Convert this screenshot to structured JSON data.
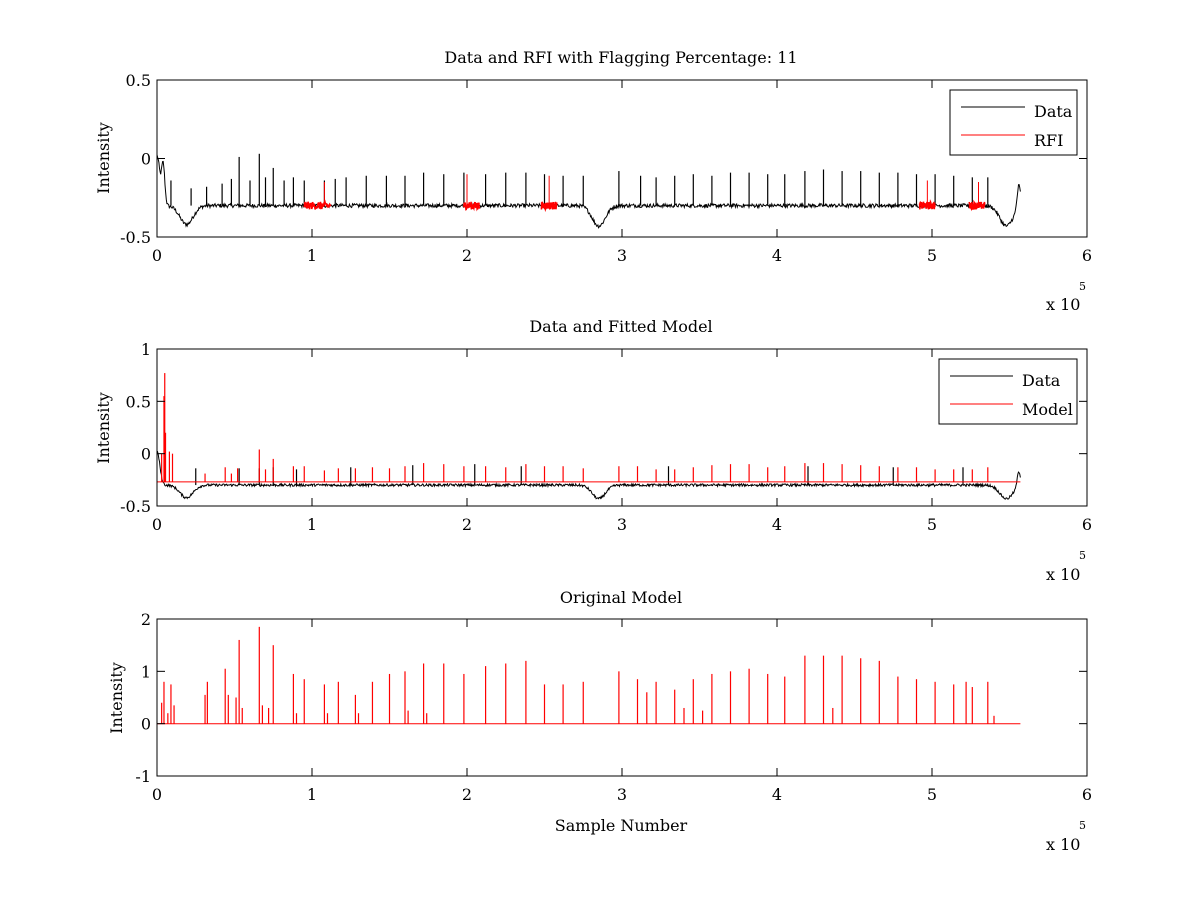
{
  "figure": {
    "background": "#ffffff",
    "colors": {
      "data": "#000000",
      "rfi": "#ff0000",
      "model": "#ff0000",
      "axes": "#000000"
    }
  },
  "chart_data": [
    {
      "type": "line",
      "title": "Data and RFI with Flagging Percentage: 11",
      "xlabel": "",
      "ylabel": "Intensity",
      "xlim": [
        0,
        600000
      ],
      "ylim": [
        -0.5,
        0.5
      ],
      "xticks": [
        0,
        1,
        2,
        3,
        4,
        5,
        6
      ],
      "yticks": [
        -0.5,
        0,
        0.5
      ],
      "ytick_labels": [
        "-0.5",
        "0",
        "0.5"
      ],
      "x_multiplier_label": "x 10",
      "x_multiplier_exponent": "5",
      "legend": {
        "position": "top-right",
        "entries": [
          "Data",
          "RFI"
        ]
      },
      "grid": false,
      "series": [
        {
          "name": "Data",
          "color": "#000000",
          "baseline": -0.3,
          "noise": 0.012,
          "x_range": [
            0,
            557000
          ],
          "features": [
            {
              "x": 0,
              "y": 0.02,
              "type": "start"
            },
            {
              "x": 4000,
              "y": -0.05,
              "type": "spike"
            },
            {
              "x": 19000,
              "y": -0.42,
              "type": "dip"
            },
            {
              "x": 285000,
              "y": -0.43,
              "type": "dip"
            },
            {
              "x": 548000,
              "y": -0.43,
              "type": "dip"
            },
            {
              "x": 556000,
              "y": -0.15,
              "type": "spike"
            }
          ],
          "spikes": [
            [
              9000,
              -0.14
            ],
            [
              22000,
              -0.19
            ],
            [
              32000,
              -0.18
            ],
            [
              42000,
              -0.16
            ],
            [
              48000,
              -0.13
            ],
            [
              53000,
              0.01
            ],
            [
              60000,
              -0.14
            ],
            [
              66000,
              0.03
            ],
            [
              70000,
              -0.12
            ],
            [
              75000,
              -0.06
            ],
            [
              82000,
              -0.14
            ],
            [
              88000,
              -0.12
            ],
            [
              95000,
              -0.14
            ],
            [
              108000,
              -0.14
            ],
            [
              115000,
              -0.13
            ],
            [
              122000,
              -0.12
            ],
            [
              135000,
              -0.11
            ],
            [
              148000,
              -0.11
            ],
            [
              160000,
              -0.11
            ],
            [
              172000,
              -0.09
            ],
            [
              185000,
              -0.1
            ],
            [
              198000,
              -0.09
            ],
            [
              212000,
              -0.1
            ],
            [
              225000,
              -0.09
            ],
            [
              238000,
              -0.09
            ],
            [
              250000,
              -0.1
            ],
            [
              262000,
              -0.11
            ],
            [
              275000,
              -0.11
            ],
            [
              298000,
              -0.08
            ],
            [
              312000,
              -0.11
            ],
            [
              322000,
              -0.12
            ],
            [
              334000,
              -0.11
            ],
            [
              346000,
              -0.1
            ],
            [
              358000,
              -0.11
            ],
            [
              370000,
              -0.09
            ],
            [
              382000,
              -0.09
            ],
            [
              394000,
              -0.1
            ],
            [
              405000,
              -0.1
            ],
            [
              418000,
              -0.08
            ],
            [
              430000,
              -0.07
            ],
            [
              442000,
              -0.08
            ],
            [
              454000,
              -0.08
            ],
            [
              466000,
              -0.09
            ],
            [
              478000,
              -0.09
            ],
            [
              490000,
              -0.1
            ],
            [
              502000,
              -0.1
            ],
            [
              514000,
              -0.11
            ],
            [
              526000,
              -0.12
            ],
            [
              536000,
              -0.12
            ]
          ]
        },
        {
          "name": "RFI",
          "color": "#ff0000",
          "segments": [
            {
              "x_start": 95000,
              "x_end": 112000,
              "spike_x": 108000,
              "spike_y": -0.15
            },
            {
              "x_start": 198000,
              "x_end": 208000,
              "spike_x": 200000,
              "spike_y": -0.1
            },
            {
              "x_start": 248000,
              "x_end": 258000,
              "spike_x": 253000,
              "spike_y": -0.11
            },
            {
              "x_start": 492000,
              "x_end": 502000,
              "spike_x": 497000,
              "spike_y": -0.14
            },
            {
              "x_start": 524000,
              "x_end": 534000,
              "spike_x": 530000,
              "spike_y": -0.15
            }
          ]
        }
      ]
    },
    {
      "type": "line",
      "title": "Data and Fitted Model",
      "xlabel": "",
      "ylabel": "Intensity",
      "xlim": [
        0,
        600000
      ],
      "ylim": [
        -0.5,
        1
      ],
      "xticks": [
        0,
        1,
        2,
        3,
        4,
        5,
        6
      ],
      "yticks": [
        -0.5,
        0,
        0.5,
        1
      ],
      "ytick_labels": [
        "-0.5",
        "0",
        "0.5",
        "1"
      ],
      "x_multiplier_label": "x 10",
      "x_multiplier_exponent": "5",
      "legend": {
        "position": "top-right",
        "entries": [
          "Data",
          "Model"
        ]
      },
      "grid": false,
      "series": [
        {
          "name": "Data",
          "color": "#000000",
          "baseline": -0.3,
          "noise": 0.012,
          "x_range": [
            0,
            557000
          ],
          "features": [
            {
              "x": 0,
              "y": 0.02,
              "type": "start"
            },
            {
              "x": 19000,
              "y": -0.42,
              "type": "dip"
            },
            {
              "x": 285000,
              "y": -0.43,
              "type": "dip"
            },
            {
              "x": 548000,
              "y": -0.43,
              "type": "dip"
            },
            {
              "x": 556000,
              "y": -0.15,
              "type": "spike"
            }
          ],
          "spikes": [
            [
              25000,
              -0.14
            ],
            [
              53000,
              -0.14
            ],
            [
              66000,
              -0.14
            ],
            [
              75000,
              -0.13
            ],
            [
              90000,
              -0.15
            ],
            [
              125000,
              -0.13
            ],
            [
              165000,
              -0.11
            ],
            [
              205000,
              -0.1
            ],
            [
              235000,
              -0.12
            ],
            [
              330000,
              -0.12
            ],
            [
              420000,
              -0.12
            ],
            [
              475000,
              -0.13
            ],
            [
              520000,
              -0.13
            ]
          ]
        },
        {
          "name": "Model",
          "color": "#ff0000",
          "baseline": -0.27,
          "x_range": [
            0,
            557000
          ],
          "spikes": [
            [
              3000,
              0.0
            ],
            [
              4500,
              0.55
            ],
            [
              5000,
              0.77
            ],
            [
              5500,
              0.2
            ],
            [
              8000,
              0.02
            ],
            [
              10000,
              0.0
            ],
            [
              31000,
              -0.19
            ],
            [
              44000,
              -0.13
            ],
            [
              48000,
              -0.19
            ],
            [
              52000,
              -0.14
            ],
            [
              66000,
              0.04
            ],
            [
              70000,
              -0.15
            ],
            [
              75000,
              -0.05
            ],
            [
              88000,
              -0.12
            ],
            [
              95000,
              -0.12
            ],
            [
              108000,
              -0.16
            ],
            [
              117000,
              -0.14
            ],
            [
              128000,
              -0.14
            ],
            [
              139000,
              -0.13
            ],
            [
              150000,
              -0.14
            ],
            [
              160000,
              -0.12
            ],
            [
              172000,
              -0.09
            ],
            [
              185000,
              -0.1
            ],
            [
              198000,
              -0.12
            ],
            [
              212000,
              -0.12
            ],
            [
              225000,
              -0.13
            ],
            [
              238000,
              -0.1
            ],
            [
              250000,
              -0.12
            ],
            [
              262000,
              -0.12
            ],
            [
              275000,
              -0.14
            ],
            [
              298000,
              -0.12
            ],
            [
              310000,
              -0.12
            ],
            [
              322000,
              -0.15
            ],
            [
              334000,
              -0.15
            ],
            [
              346000,
              -0.13
            ],
            [
              358000,
              -0.11
            ],
            [
              370000,
              -0.1
            ],
            [
              382000,
              -0.1
            ],
            [
              394000,
              -0.13
            ],
            [
              405000,
              -0.12
            ],
            [
              418000,
              -0.09
            ],
            [
              430000,
              -0.09
            ],
            [
              442000,
              -0.1
            ],
            [
              454000,
              -0.11
            ],
            [
              466000,
              -0.12
            ],
            [
              478000,
              -0.13
            ],
            [
              490000,
              -0.13
            ],
            [
              502000,
              -0.15
            ],
            [
              514000,
              -0.15
            ],
            [
              526000,
              -0.15
            ],
            [
              536000,
              -0.13
            ]
          ]
        }
      ]
    },
    {
      "type": "line",
      "title": "Original Model",
      "xlabel": "Sample Number",
      "ylabel": "Intensity",
      "xlim": [
        0,
        600000
      ],
      "ylim": [
        -1,
        2
      ],
      "xticks": [
        0,
        1,
        2,
        3,
        4,
        5,
        6
      ],
      "yticks": [
        -1,
        0,
        1,
        2
      ],
      "ytick_labels": [
        "-1",
        "0",
        "1",
        "2"
      ],
      "x_multiplier_label": "x 10",
      "x_multiplier_exponent": "5",
      "legend": null,
      "grid": false,
      "series": [
        {
          "name": "",
          "color": "#ff0000",
          "baseline": 0,
          "x_range": [
            0,
            557000
          ],
          "spikes": [
            [
              3000,
              0.4
            ],
            [
              4500,
              0.8
            ],
            [
              7000,
              0.2
            ],
            [
              9000,
              0.75
            ],
            [
              11000,
              0.35
            ],
            [
              31000,
              0.55
            ],
            [
              32500,
              0.8
            ],
            [
              44000,
              1.05
            ],
            [
              46000,
              0.55
            ],
            [
              51000,
              0.5
            ],
            [
              53000,
              1.6
            ],
            [
              55000,
              0.3
            ],
            [
              66000,
              1.85
            ],
            [
              68000,
              0.35
            ],
            [
              72000,
              0.3
            ],
            [
              75000,
              1.5
            ],
            [
              88000,
              0.95
            ],
            [
              90000,
              0.2
            ],
            [
              95000,
              0.85
            ],
            [
              108000,
              0.75
            ],
            [
              110000,
              0.2
            ],
            [
              117000,
              0.8
            ],
            [
              128000,
              0.55
            ],
            [
              130000,
              0.2
            ],
            [
              139000,
              0.8
            ],
            [
              150000,
              0.95
            ],
            [
              160000,
              1.0
            ],
            [
              162000,
              0.25
            ],
            [
              172000,
              1.15
            ],
            [
              174000,
              0.2
            ],
            [
              185000,
              1.15
            ],
            [
              198000,
              0.95
            ],
            [
              212000,
              1.1
            ],
            [
              225000,
              1.15
            ],
            [
              238000,
              1.2
            ],
            [
              250000,
              0.75
            ],
            [
              262000,
              0.75
            ],
            [
              275000,
              0.8
            ],
            [
              298000,
              1.0
            ],
            [
              310000,
              0.85
            ],
            [
              316000,
              0.6
            ],
            [
              322000,
              0.8
            ],
            [
              334000,
              0.65
            ],
            [
              340000,
              0.3
            ],
            [
              346000,
              0.85
            ],
            [
              352000,
              0.25
            ],
            [
              358000,
              0.95
            ],
            [
              370000,
              1.0
            ],
            [
              382000,
              1.05
            ],
            [
              394000,
              0.95
            ],
            [
              405000,
              0.9
            ],
            [
              418000,
              1.3
            ],
            [
              430000,
              1.3
            ],
            [
              436000,
              0.3
            ],
            [
              442000,
              1.3
            ],
            [
              454000,
              1.25
            ],
            [
              466000,
              1.2
            ],
            [
              478000,
              0.9
            ],
            [
              490000,
              0.85
            ],
            [
              502000,
              0.8
            ],
            [
              514000,
              0.75
            ],
            [
              522000,
              0.8
            ],
            [
              526000,
              0.7
            ],
            [
              536000,
              0.8
            ],
            [
              540000,
              0.15
            ]
          ]
        }
      ]
    }
  ]
}
